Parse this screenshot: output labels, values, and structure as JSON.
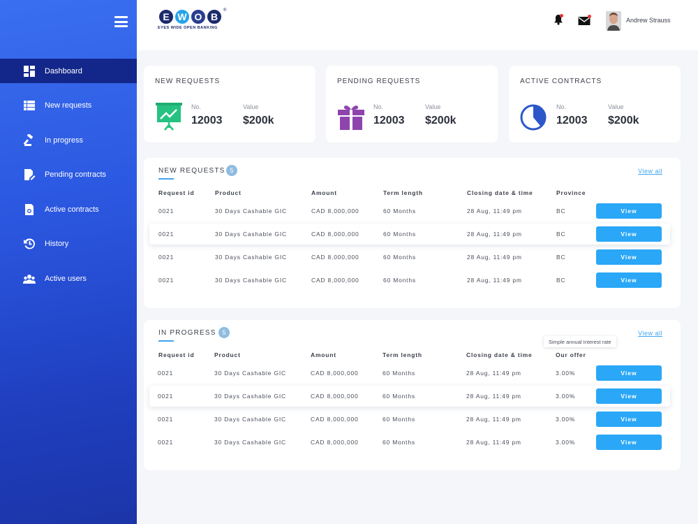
{
  "brand": {
    "letters": [
      "E",
      "W",
      "O",
      "B"
    ],
    "colors": [
      "#1b2a6b",
      "#27a3e8",
      "#2b3e8f",
      "#1b2a6b"
    ],
    "tagline": "EYES WIDE OPEN BANKING",
    "registered": "®"
  },
  "user": {
    "name": "Andrew Strauss"
  },
  "sidebar": {
    "items": [
      {
        "label": "Dashboard",
        "icon": "dashboard-icon"
      },
      {
        "label": "New requests",
        "icon": "list-icon"
      },
      {
        "label": "In progress",
        "icon": "gavel-icon"
      },
      {
        "label": "Pending contracts",
        "icon": "document-edit-icon"
      },
      {
        "label": "Active contracts",
        "icon": "certificate-icon"
      },
      {
        "label": "History",
        "icon": "history-icon"
      },
      {
        "label": "Active users",
        "icon": "users-icon"
      }
    ]
  },
  "stats": [
    {
      "title": "NEW REQUESTS",
      "no_label": "No.",
      "no_value": "12003",
      "value_label": "Value",
      "value": "$200k",
      "icon": "presentation-chart-icon"
    },
    {
      "title": "PENDING REQUESTS",
      "no_label": "No.",
      "no_value": "12003",
      "value_label": "Value",
      "value": "$200k",
      "icon": "gift-icon"
    },
    {
      "title": "ACTIVE CONTRACTS",
      "no_label": "No.",
      "no_value": "12003",
      "value_label": "Value",
      "value": "$200k",
      "icon": "pie-chart-icon"
    }
  ],
  "new_requests": {
    "title": "NEW REQUESTS",
    "count": "5",
    "view_all": "View all",
    "columns": [
      "Request id",
      "Product",
      "Amount",
      "Term length",
      "Closing date & time",
      "Province"
    ],
    "button_label": "View",
    "rows": [
      [
        "0021",
        "30 Days Cashable GIC",
        "CAD 8,000,000",
        "60 Months",
        "28 Aug, 11:49 pm",
        "BC"
      ],
      [
        "0021",
        "30 Days Cashable GIC",
        "CAD 8,000,000",
        "60 Months",
        "28 Aug, 11:49 pm",
        "BC"
      ],
      [
        "0021",
        "30 Days Cashable GIC",
        "CAD 8,000,000",
        "60 Months",
        "28 Aug, 11:49 pm",
        "BC"
      ],
      [
        "0021",
        "30 Days Cashable GIC",
        "CAD 8,000,000",
        "60 Months",
        "28 Aug, 11:49 pm",
        "BC"
      ]
    ]
  },
  "in_progress": {
    "title": "IN PROGRESS",
    "count": "5",
    "view_all": "View all",
    "tooltip": "Simple annual Interest rate",
    "columns": [
      "Request id",
      "Product",
      "Amount",
      "Term length",
      "Closing date & time",
      "Our offer"
    ],
    "button_label": "View",
    "rows": [
      [
        "0021",
        "30 Days Cashable GIC",
        "CAD 8,000,000",
        "60 Months",
        "28 Aug, 11:49 pm",
        "3.00%"
      ],
      [
        "0021",
        "30 Days Cashable GIC",
        "CAD 8,000,000",
        "60 Months",
        "28 Aug, 11:49 pm",
        "3.00%"
      ],
      [
        "0021",
        "30 Days Cashable GIC",
        "CAD 8,000,000",
        "60 Months",
        "28 Aug, 11:49 pm",
        "3.00%"
      ],
      [
        "0021",
        "30 Days Cashable GIC",
        "CAD 8,000,000",
        "60 Months",
        "28 Aug, 11:49 pm",
        "3.00%"
      ]
    ]
  }
}
